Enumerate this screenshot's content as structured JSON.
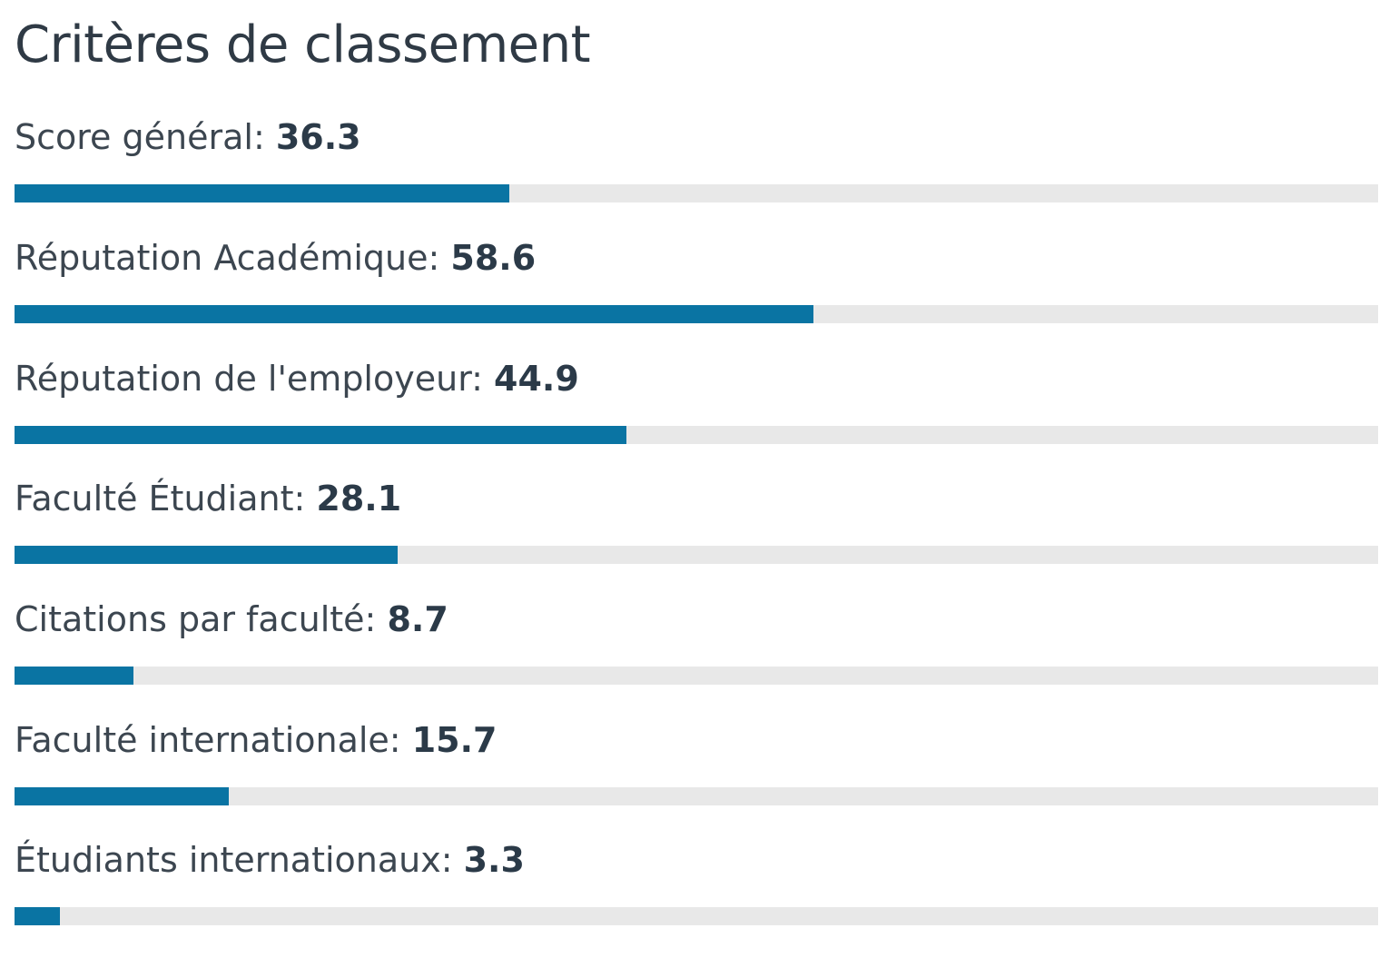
{
  "title": "Critères de classement",
  "colors": {
    "bar_fill": "#0a74a3",
    "bar_track": "#e8e8e8"
  },
  "criteria": [
    {
      "label": "Score général:",
      "value": "36.3",
      "fill_percent": 36.3
    },
    {
      "label": "Réputation Académique:",
      "value": "58.6",
      "fill_percent": 58.6
    },
    {
      "label": "Réputation de l'employeur:",
      "value": "44.9",
      "fill_percent": 44.9
    },
    {
      "label": "Faculté Étudiant:",
      "value": "28.1",
      "fill_percent": 28.1
    },
    {
      "label": "Citations par faculté:",
      "value": "8.7",
      "fill_percent": 8.7
    },
    {
      "label": "Faculté internationale:",
      "value": "15.7",
      "fill_percent": 15.7
    },
    {
      "label": "Étudiants internationaux:",
      "value": "3.3",
      "fill_percent": 3.3
    }
  ]
}
